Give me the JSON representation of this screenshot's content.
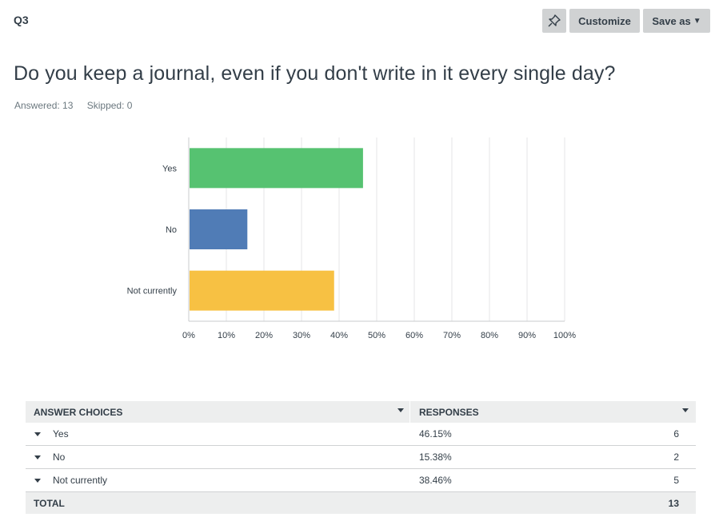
{
  "header": {
    "question_number": "Q3",
    "customize_label": "Customize",
    "save_as_label": "Save as"
  },
  "question": {
    "text": "Do you keep a journal, even if you don't write in it every single day?",
    "answered": "Answered: 13",
    "skipped": "Skipped: 0"
  },
  "chart_data": {
    "type": "bar",
    "orientation": "horizontal",
    "categories": [
      "Yes",
      "No",
      "Not currently"
    ],
    "values": [
      46.15,
      15.38,
      38.46
    ],
    "colors": [
      "#56c271",
      "#507cb6",
      "#f7c143"
    ],
    "xlim": [
      0,
      100
    ],
    "x_ticks": [
      "0%",
      "10%",
      "20%",
      "30%",
      "40%",
      "50%",
      "60%",
      "70%",
      "80%",
      "90%",
      "100%"
    ],
    "grid": true
  },
  "table": {
    "headers": [
      "ANSWER CHOICES",
      "RESPONSES"
    ],
    "rows": [
      {
        "label": "Yes",
        "percent": "46.15%",
        "count": "6"
      },
      {
        "label": "No",
        "percent": "15.38%",
        "count": "2"
      },
      {
        "label": "Not currently",
        "percent": "38.46%",
        "count": "5"
      }
    ],
    "total_label": "TOTAL",
    "total_count": "13"
  }
}
